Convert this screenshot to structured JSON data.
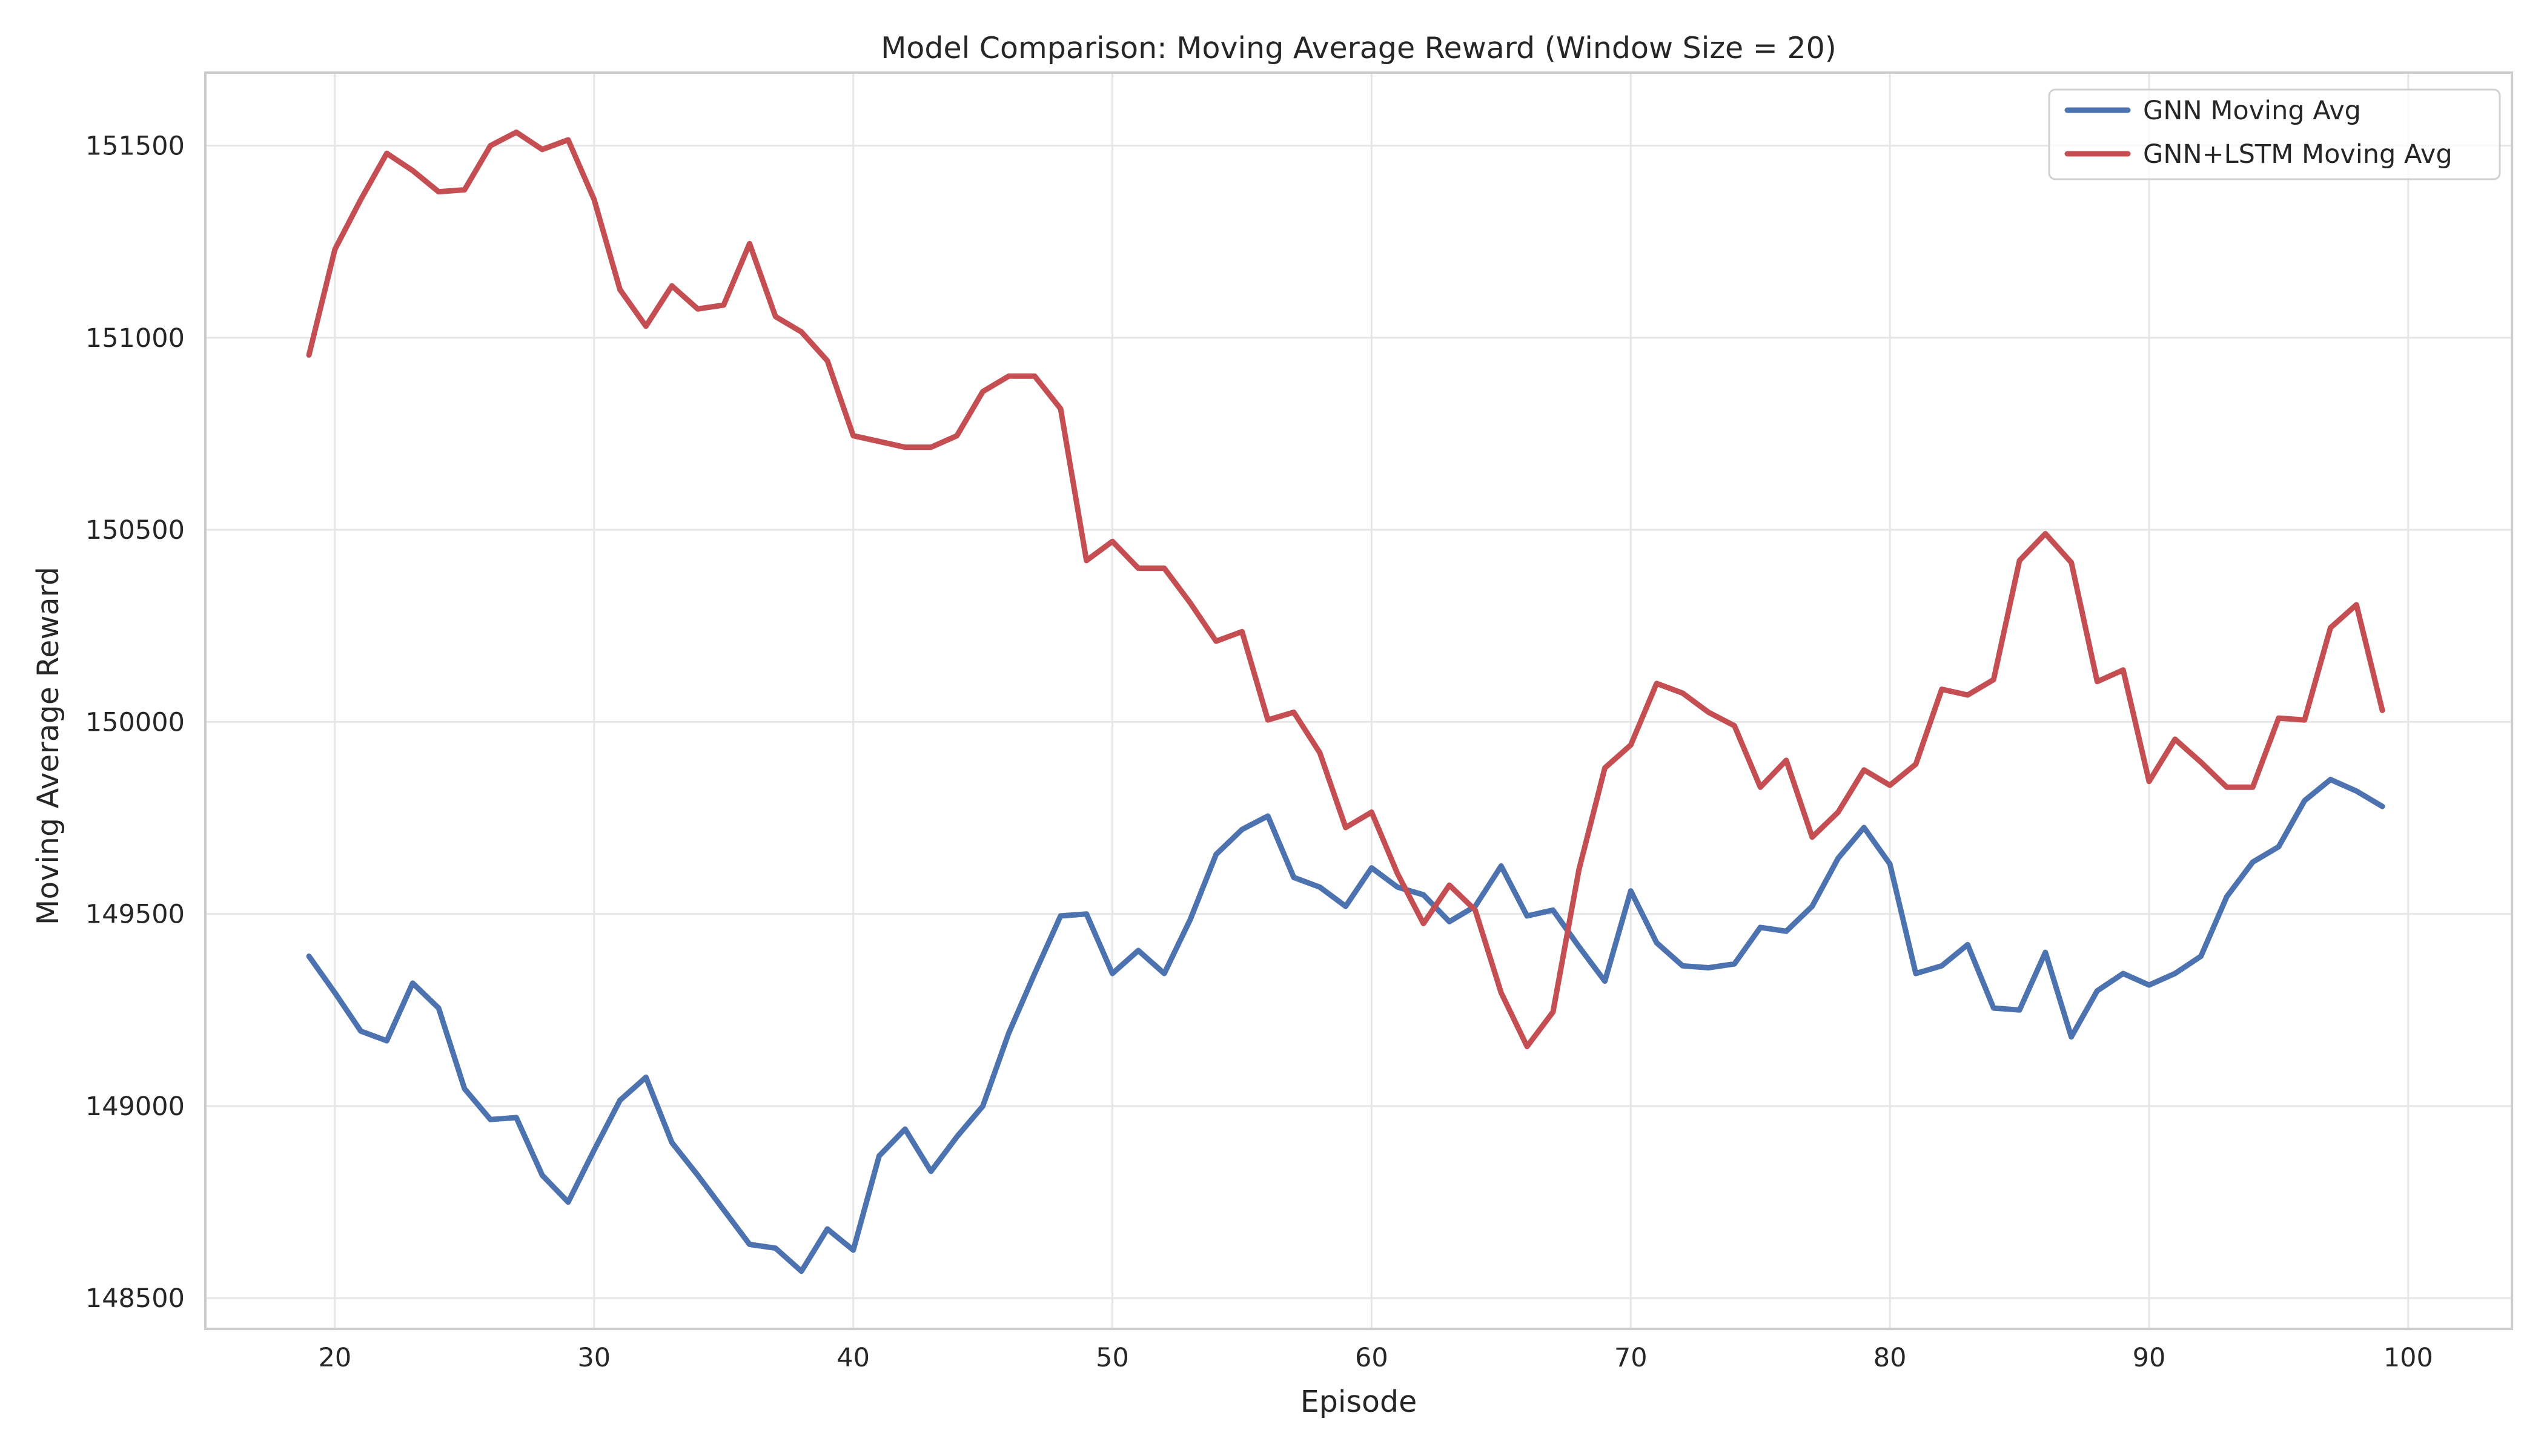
{
  "chart_data": {
    "type": "line",
    "title": "Model Comparison: Moving Average Reward (Window Size = 20)",
    "xlabel": "Episode",
    "ylabel": "Moving Average Reward",
    "xlim": [
      15,
      104
    ],
    "ylim": [
      148420,
      151690
    ],
    "xticks": [
      20,
      30,
      40,
      50,
      60,
      70,
      80,
      90,
      100
    ],
    "yticks": [
      148500,
      149000,
      149500,
      150000,
      150500,
      151000,
      151500
    ],
    "grid": true,
    "legend_position": "top-right",
    "x": [
      19,
      20,
      21,
      22,
      23,
      24,
      25,
      26,
      27,
      28,
      29,
      30,
      31,
      32,
      33,
      34,
      35,
      36,
      37,
      38,
      39,
      40,
      41,
      42,
      43,
      44,
      45,
      46,
      47,
      48,
      49,
      50,
      51,
      52,
      53,
      54,
      55,
      56,
      57,
      58,
      59,
      60,
      61,
      62,
      63,
      64,
      65,
      66,
      67,
      68,
      69,
      70,
      71,
      72,
      73,
      74,
      75,
      76,
      77,
      78,
      79,
      80,
      81,
      82,
      83,
      84,
      85,
      86,
      87,
      88,
      89,
      90,
      91,
      92,
      93,
      94,
      95,
      96,
      97,
      98,
      99
    ],
    "series": [
      {
        "name": "GNN Moving Avg",
        "color": "#4C72B0",
        "values": [
          149390,
          149295,
          149195,
          149170,
          149320,
          149255,
          149045,
          148965,
          148970,
          148820,
          148750,
          148885,
          149015,
          149075,
          148905,
          148820,
          148730,
          148640,
          148630,
          148570,
          148680,
          148625,
          148870,
          148940,
          148830,
          148920,
          149000,
          149190,
          149345,
          149495,
          149500,
          149345,
          149405,
          149345,
          149485,
          149655,
          149720,
          149755,
          149595,
          149570,
          149520,
          149620,
          149570,
          149550,
          149480,
          149520,
          149625,
          149495,
          149510,
          149415,
          149325,
          149560,
          149425,
          149365,
          149360,
          149370,
          149465,
          149455,
          149520,
          149645,
          149725,
          149630,
          149345,
          149365,
          149420,
          149255,
          149250,
          149400,
          149180,
          149300,
          149345,
          149315,
          149345,
          149390,
          149545,
          149635,
          149675,
          149795,
          149850,
          149820,
          149780
        ]
      },
      {
        "name": "GNN+LSTM Moving Avg",
        "color": "#C44E52",
        "values": [
          150955,
          151230,
          151360,
          151480,
          151435,
          151380,
          151385,
          151500,
          151535,
          151490,
          151515,
          151360,
          151125,
          151030,
          151135,
          151075,
          151085,
          151245,
          151055,
          151015,
          150940,
          150745,
          150730,
          150715,
          150715,
          150745,
          150860,
          150900,
          150900,
          150815,
          150420,
          150470,
          150400,
          150400,
          150310,
          150210,
          150235,
          150005,
          150025,
          149920,
          149725,
          149765,
          149605,
          149475,
          149575,
          149510,
          149295,
          149155,
          149245,
          149615,
          149880,
          149940,
          150100,
          150075,
          150025,
          149990,
          149830,
          149900,
          149700,
          149765,
          149875,
          149835,
          149890,
          150085,
          150070,
          150110,
          150420,
          150490,
          150415,
          150105,
          150135,
          149845,
          149955,
          149895,
          149830,
          149830,
          150010,
          150005,
          150245,
          150305,
          150030
        ]
      }
    ]
  }
}
